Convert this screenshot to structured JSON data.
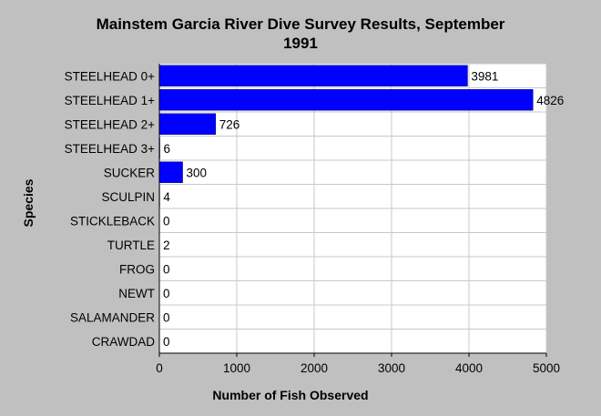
{
  "chart_data": {
    "type": "bar",
    "orientation": "horizontal",
    "title_lines": [
      "Mainstem Garcia River Dive Survey Results, September",
      "1991"
    ],
    "xlabel": "Number of Fish Observed",
    "ylabel": "Species",
    "categories": [
      "STEELHEAD 0+",
      "STEELHEAD 1+",
      "STEELHEAD 2+",
      "STEELHEAD 3+",
      "SUCKER",
      "SCULPIN",
      "STICKLEBACK",
      "TURTLE",
      "FROG",
      "NEWT",
      "SALAMANDER",
      "CRAWDAD"
    ],
    "values": [
      3981,
      4826,
      726,
      6,
      300,
      4,
      0,
      2,
      0,
      0,
      0,
      0
    ],
    "value_labels": [
      "3981",
      "4826",
      "726",
      "6",
      "300",
      "4",
      "0",
      "2",
      "0",
      "0",
      "0",
      "0"
    ],
    "xlim": [
      0,
      5000
    ],
    "xticks": [
      "0",
      "1000",
      "2000",
      "3000",
      "4000",
      "5000"
    ],
    "grid": true,
    "bar_color": "#0000ff",
    "plot_background": "#ffffff",
    "page_background": "#c0c0c0"
  }
}
